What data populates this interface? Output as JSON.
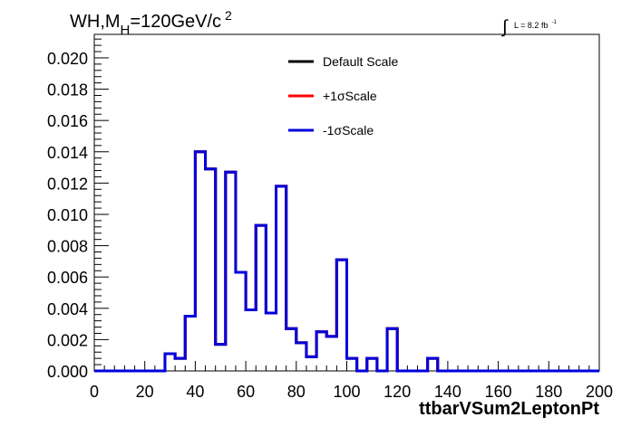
{
  "chart_data": {
    "type": "line",
    "title_parts": {
      "pre": "WH,M",
      "sub": "H",
      "mid": "=120GeV/c",
      "sup": "2"
    },
    "lumi": {
      "integral": "∫",
      "text": "L = 8.2 fb",
      "sup": "-1"
    },
    "xlabel": "ttbarVSum2LeptonPt",
    "ylabel": "",
    "xlim": [
      0,
      200
    ],
    "ylim": [
      0,
      0.0215
    ],
    "x_ticks": [
      0,
      20,
      40,
      60,
      80,
      100,
      120,
      140,
      160,
      180,
      200
    ],
    "x_tick_labels": [
      "0",
      "20",
      "40",
      "60",
      "80",
      "100",
      "120",
      "140",
      "160",
      "180",
      "200"
    ],
    "y_ticks": [
      0,
      0.002,
      0.004,
      0.006,
      0.008,
      0.01,
      0.012,
      0.014,
      0.016,
      0.018,
      0.02
    ],
    "y_tick_labels": [
      "0.000",
      "0.002",
      "0.004",
      "0.006",
      "0.008",
      "0.010",
      "0.012",
      "0.014",
      "0.016",
      "0.018",
      "0.020"
    ],
    "bin_width": 4,
    "bin_edges_start": 0,
    "legend_placement": "top-center",
    "series": [
      {
        "name": "Default Scale",
        "color": "#000000",
        "values": [
          0,
          0,
          0,
          0,
          0,
          0,
          0,
          0.0011,
          0.0008,
          0.0035,
          0.014,
          0.0129,
          0.0017,
          0.0127,
          0.0063,
          0.0039,
          0.0093,
          0.0037,
          0.0118,
          0.0027,
          0.0018,
          0.0009,
          0.0025,
          0.0022,
          0.0071,
          0.0008,
          0,
          0.0008,
          0,
          0.0027,
          0,
          0,
          0,
          0.0008,
          0,
          0,
          0,
          0,
          0,
          0,
          0,
          0,
          0,
          0,
          0,
          0,
          0,
          0,
          0,
          0
        ]
      },
      {
        "name": "+1σScale",
        "color": "#ff0000",
        "values": [
          0,
          0,
          0,
          0,
          0,
          0,
          0,
          0.0011,
          0.0008,
          0.0035,
          0.014,
          0.0129,
          0.0017,
          0.0127,
          0.0063,
          0.0039,
          0.0093,
          0.0037,
          0.0118,
          0.0027,
          0.0018,
          0.0009,
          0.0025,
          0.0022,
          0.0071,
          0.0008,
          0,
          0.0008,
          0,
          0.0027,
          0,
          0,
          0,
          0.0008,
          0,
          0,
          0,
          0,
          0,
          0,
          0,
          0,
          0,
          0,
          0,
          0,
          0,
          0,
          0,
          0
        ]
      },
      {
        "name": "-1σScale",
        "color": "#0000dd",
        "values": [
          0,
          0,
          0,
          0,
          0,
          0,
          0,
          0.0011,
          0.0008,
          0.0035,
          0.014,
          0.0129,
          0.0017,
          0.0127,
          0.0063,
          0.0039,
          0.0093,
          0.0037,
          0.0118,
          0.0027,
          0.0018,
          0.0009,
          0.0025,
          0.0022,
          0.0071,
          0.0008,
          0,
          0.0008,
          0,
          0.0027,
          0,
          0,
          0,
          0.0008,
          0,
          0,
          0,
          0,
          0,
          0,
          0,
          0,
          0,
          0,
          0,
          0,
          0,
          0,
          0,
          0
        ]
      }
    ]
  }
}
